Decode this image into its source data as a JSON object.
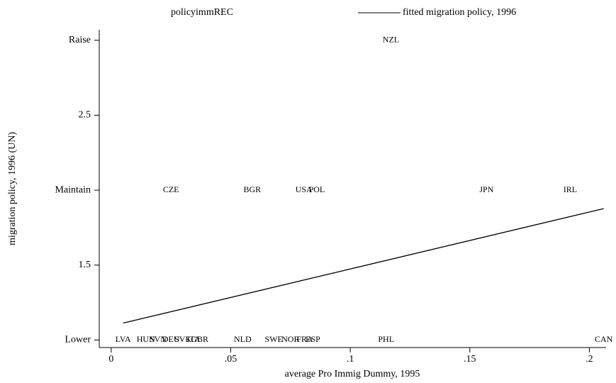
{
  "chart_data": {
    "type": "scatter",
    "xlabel": "average Pro Immig Dummy, 1995",
    "ylabel": "migration policy, 1996 (UN)",
    "xlim": [
      -0.005,
      0.207
    ],
    "ylim": [
      0.95,
      3.07
    ],
    "xticks": [
      0,
      {
        "value": 0.05,
        "label": ".05"
      },
      {
        "value": 0.1,
        "label": ".1"
      },
      {
        "value": 0.15,
        "label": ".15"
      },
      {
        "value": 0.2,
        "label": ".2"
      }
    ],
    "yticks": [
      {
        "value": 1,
        "label": "Lower"
      },
      1.5,
      {
        "value": 2,
        "label": "Maintain"
      },
      2.5,
      {
        "value": 3,
        "label": "Raise"
      }
    ],
    "legend": "top",
    "series": [
      {
        "name": "policyimmREC",
        "type": "scatter",
        "color": "#000000",
        "labels": [
          "LVA",
          "HUN",
          "SVN",
          "DEU",
          "SVK",
          "ITA",
          "GBR",
          "NLD",
          "SWE",
          "NOR",
          "FRA",
          "ESP",
          "PHL",
          "CAN",
          "CZE",
          "BGR",
          "USA",
          "POL",
          "JPN",
          "IRL",
          "NZL"
        ],
        "x": [
          0.005,
          0.0145,
          0.0196,
          0.025,
          0.03,
          0.0344,
          0.037,
          0.055,
          0.068,
          0.075,
          0.081,
          0.0844,
          0.115,
          0.206,
          0.025,
          0.059,
          0.0806,
          0.086,
          0.157,
          0.192,
          0.117
        ],
        "values": [
          1,
          1,
          1,
          1,
          1,
          1,
          1,
          1,
          1,
          1,
          1,
          1,
          1,
          1,
          2,
          2,
          2,
          2,
          2,
          2,
          3
        ]
      },
      {
        "name": "fitted migration policy, 1996",
        "type": "line",
        "color": "#000000",
        "x": [
          0.005,
          0.206
        ],
        "values": [
          1.113,
          1.877
        ]
      }
    ]
  }
}
